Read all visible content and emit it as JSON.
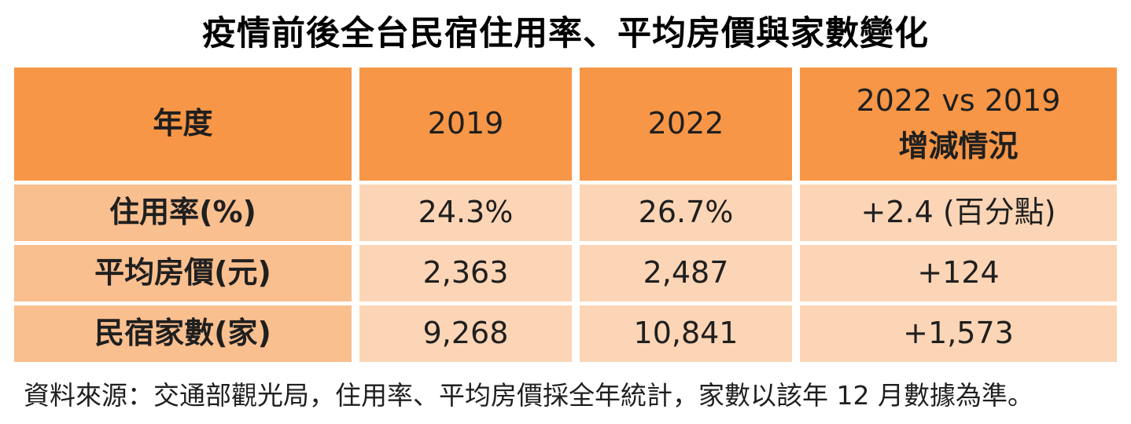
{
  "title": "疫情前後全台民宿住用率、平均房價與家數變化",
  "header": {
    "year": "年度",
    "col_2019": "2019",
    "col_2022": "2022",
    "delta_line1": "2022 vs 2019",
    "delta_line2": "增減情況"
  },
  "rows": [
    {
      "label": "住用率(%)",
      "y2019": "24.3%",
      "y2022": "26.7%",
      "delta": "+2.4 (百分點)"
    },
    {
      "label": "平均房價(元)",
      "y2019": "2,363",
      "y2022": "2,487",
      "delta": "+124"
    },
    {
      "label": "民宿家數(家)",
      "y2019": "9,268",
      "y2022": "10,841",
      "delta": "+1,573"
    }
  ],
  "source_note": "資料來源：交通部觀光局，住用率、平均房價採全年統計，家數以該年 12 月數據為準。",
  "colors": {
    "header_bg": "#F79646",
    "label_bg": "#FABF8F",
    "value_bg": "#FBD5B5",
    "text": "#1F1F1F",
    "title_text": "#000000",
    "background": "#FFFFFF"
  },
  "chart_data": {
    "type": "table",
    "title": "疫情前後全台民宿住用率、平均房價與家數變化",
    "columns": [
      "年度",
      "2019",
      "2022",
      "2022 vs 2019 增減情況"
    ],
    "rows": [
      [
        "住用率(%)",
        "24.3%",
        "26.7%",
        "+2.4 (百分點)"
      ],
      [
        "平均房價(元)",
        "2,363",
        "2,487",
        "+124"
      ],
      [
        "民宿家數(家)",
        "9,268",
        "10,841",
        "+1,573"
      ]
    ],
    "numeric": {
      "occupancy_rate_pct": {
        "y2019": 24.3,
        "y2022": 26.7,
        "delta": 2.4
      },
      "avg_room_price_twd": {
        "y2019": 2363,
        "y2022": 2487,
        "delta": 124
      },
      "bnb_count": {
        "y2019": 9268,
        "y2022": 10841,
        "delta": 1573
      }
    },
    "source": "資料來源：交通部觀光局，住用率、平均房價採全年統計，家數以該年 12 月數據為準。"
  }
}
